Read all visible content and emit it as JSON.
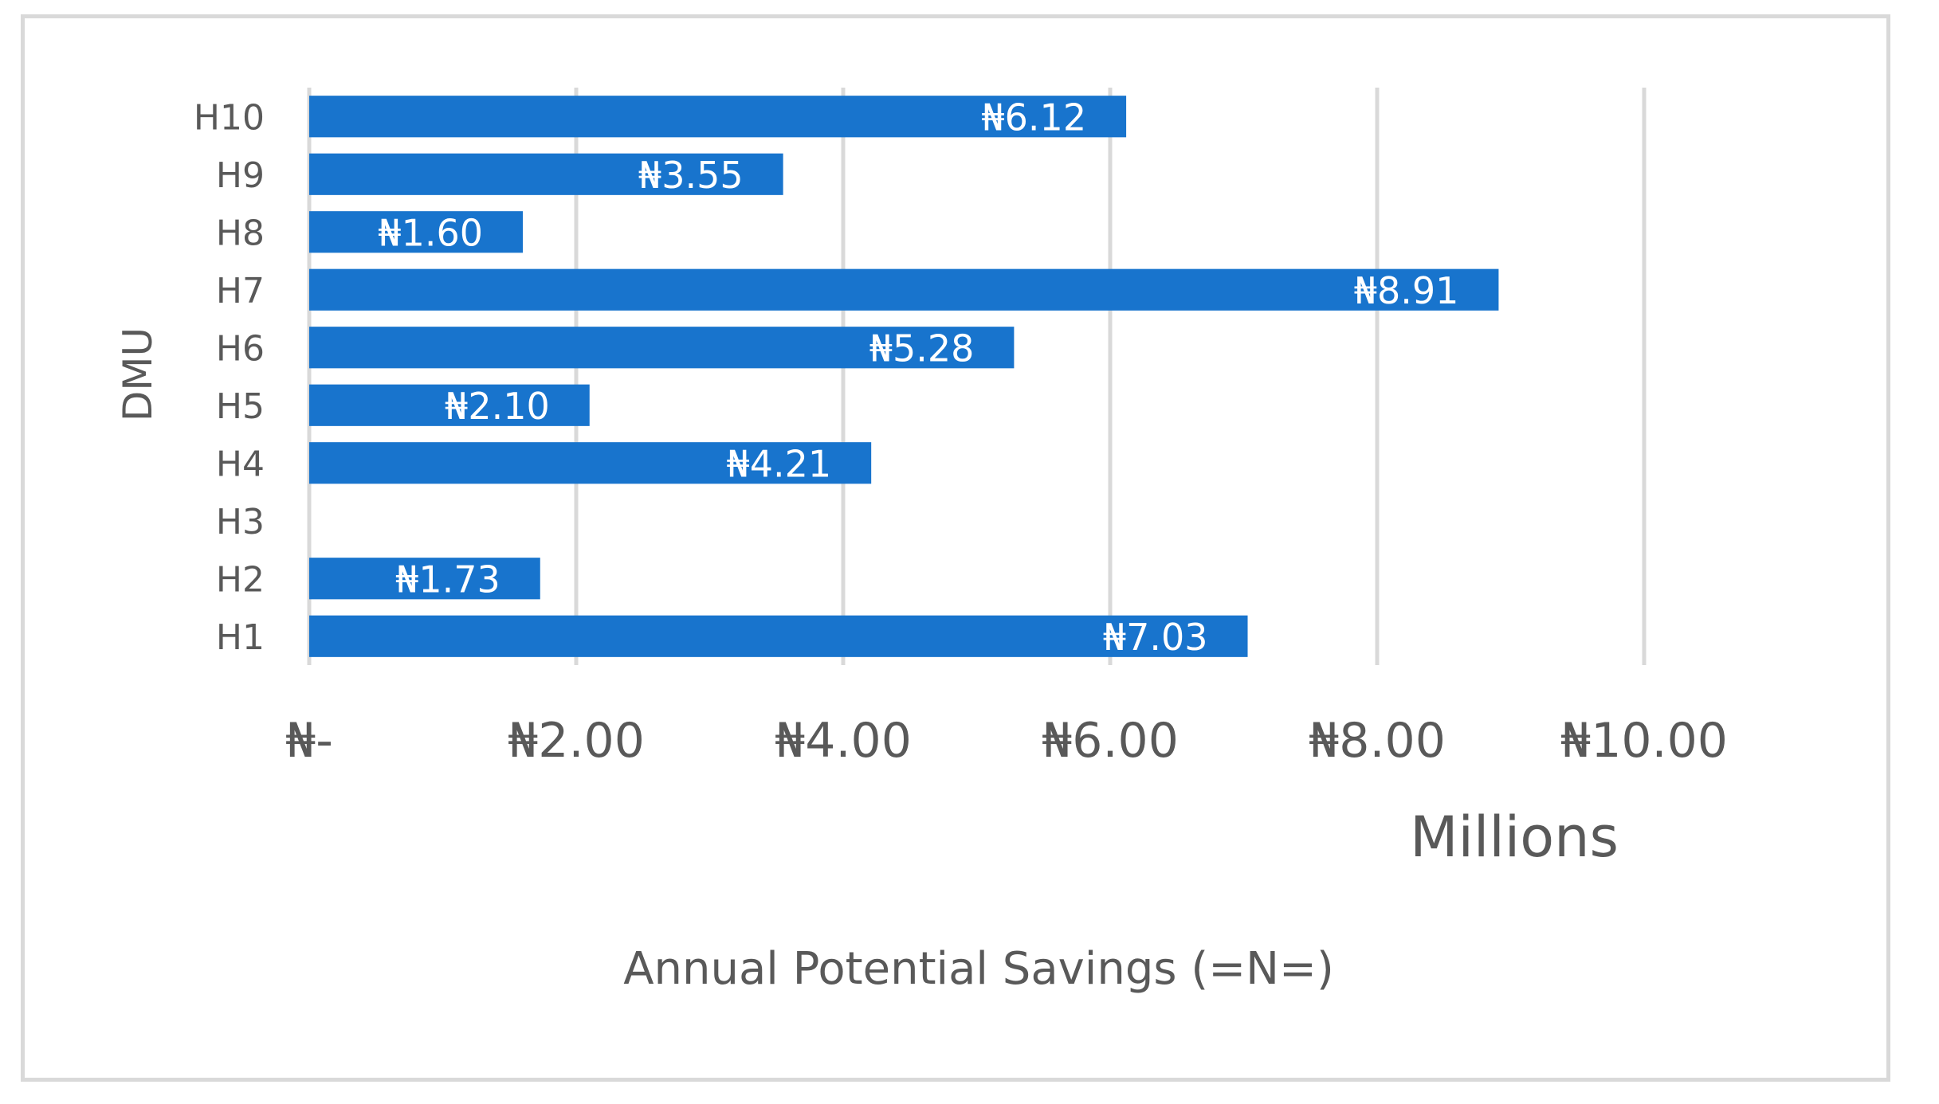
{
  "chart_data": {
    "type": "bar",
    "orientation": "horizontal",
    "categories": [
      "H10",
      "H9",
      "H8",
      "H7",
      "H6",
      "H5",
      "H4",
      "H3",
      "H2",
      "H1"
    ],
    "values": [
      6.12,
      3.55,
      1.6,
      8.91,
      5.28,
      2.1,
      4.21,
      null,
      1.73,
      7.03
    ],
    "data_labels": [
      "₦6.12",
      "₦3.55",
      "₦1.60",
      "₦8.91",
      "₦5.28",
      "₦2.10",
      "₦4.21",
      "",
      "₦1.73",
      "₦7.03"
    ],
    "x_ticks": [
      0,
      2,
      4,
      6,
      8,
      10
    ],
    "x_tick_labels": [
      "₦-",
      "₦2.00",
      "₦4.00",
      "₦6.00",
      "₦8.00",
      "₦10.00"
    ],
    "xlim": [
      0,
      10
    ],
    "x_unit_label": "Millions",
    "xlabel": "Annual Potential Savings (=N=)",
    "ylabel": "DMU",
    "grid": "vertical",
    "legend": "none",
    "colors": {
      "bar": "#1874CD",
      "grid": "#d9d9d9",
      "text": "#595959",
      "data_label": "#ffffff",
      "frame": "#d9d9d9"
    }
  }
}
